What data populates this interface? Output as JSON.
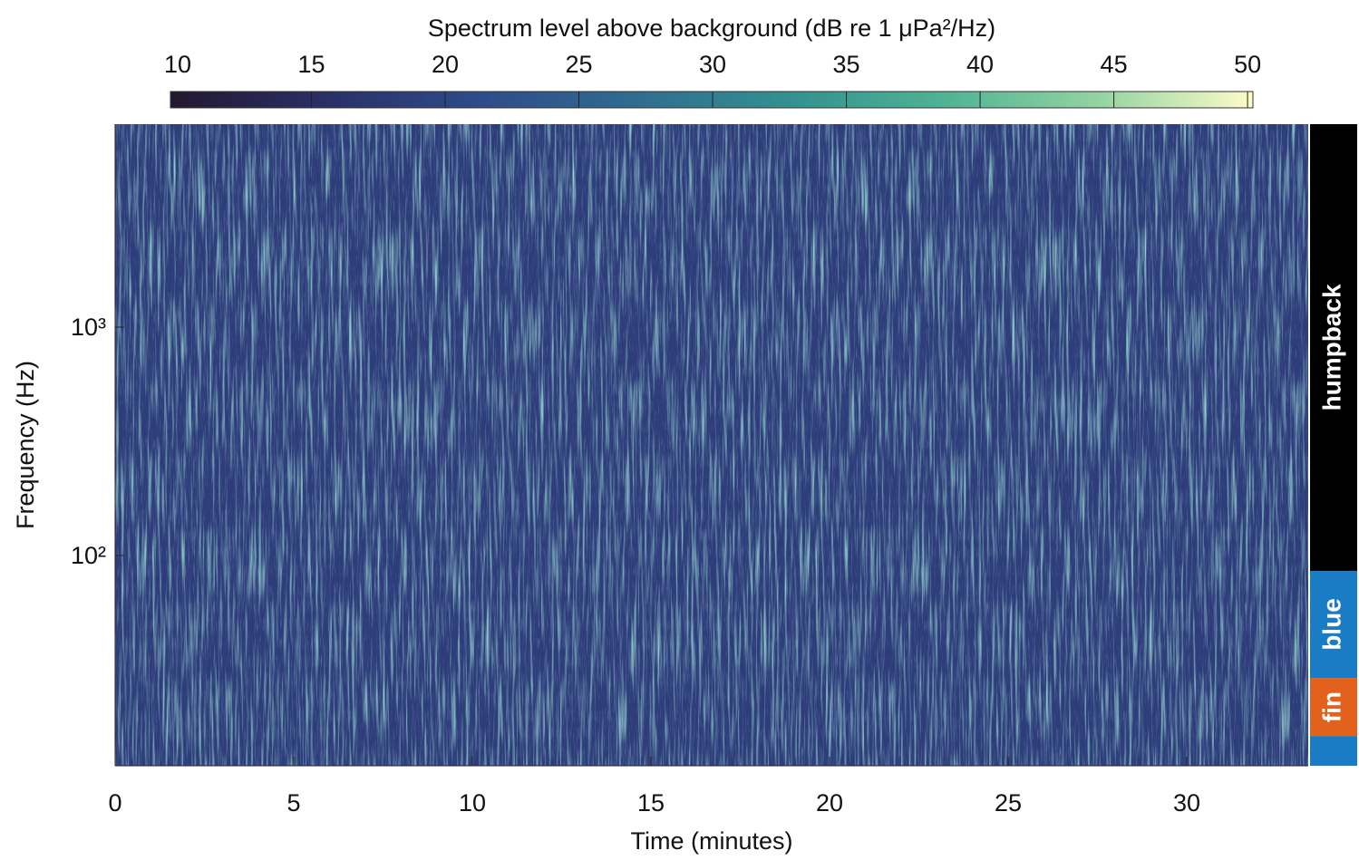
{
  "chart_data": {
    "type": "spectrogram",
    "colorbar_title": "Spectrum level above background (dB re 1 μPa²/Hz)",
    "clim": [
      9.73,
      50.2
    ],
    "cticks": [
      10,
      15,
      20,
      25,
      30,
      35,
      40,
      45,
      50
    ],
    "colormap": [
      "#23182f",
      "#2a2f66",
      "#2f4b8a",
      "#2f6c8f",
      "#32918f",
      "#4fb394",
      "#93d3a2",
      "#fdfcc8"
    ],
    "xlabel": "Time (minutes)",
    "ylabel": "Frequency (Hz)",
    "xlim": [
      0,
      33.4
    ],
    "xticks": [
      0,
      5,
      10,
      15,
      20,
      25,
      30
    ],
    "ylim": [
      12,
      7740
    ],
    "yscale": "log",
    "yticks": [
      {
        "value": 100,
        "label": "10²"
      },
      {
        "value": 1000,
        "label": "10³"
      }
    ],
    "bands": [
      {
        "label": "humpback",
        "color": "#000000",
        "range": [
          85.6,
          7740
        ]
      },
      {
        "label": "blue",
        "color": "#1b7cc6",
        "range": [
          29.1,
          85.6
        ]
      },
      {
        "label": "fin",
        "color": "#e2611c",
        "range": [
          16.2,
          29.1
        ]
      },
      {
        "label": null,
        "color": "#1b7cc6",
        "range": [
          12,
          16.2
        ]
      }
    ]
  }
}
